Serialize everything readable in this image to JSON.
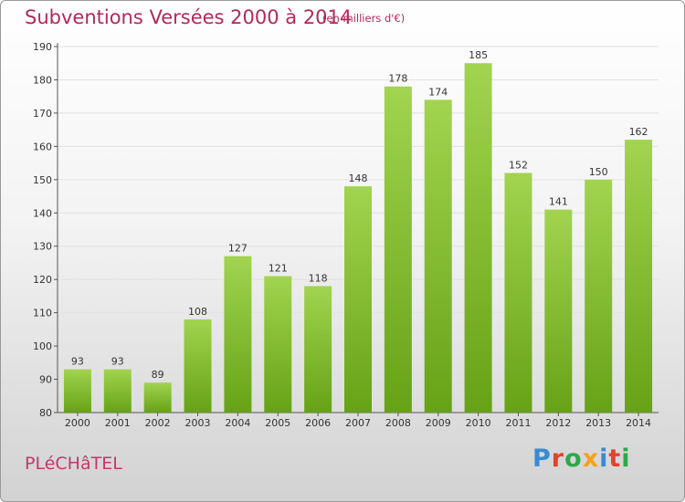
{
  "header": {
    "title": "Subventions Versées 2000 à 2014",
    "unit_note": "(en milliers d'€)"
  },
  "footer": {
    "commune": "PLéCHâTEL",
    "logo_letters": [
      "P",
      "r",
      "o",
      "x",
      "i",
      "t",
      "i"
    ],
    "logo_colors": [
      "#3a8ad1",
      "#e0442d",
      "#2ea84a",
      "#f4a21d",
      "#3a8ad1",
      "#e0442d",
      "#2ea84a"
    ]
  },
  "chart_data": {
    "type": "bar",
    "title": "Subventions Versées 2000 à 2014",
    "xlabel": "",
    "ylabel": "",
    "categories": [
      "2000",
      "2001",
      "2002",
      "2003",
      "2004",
      "2005",
      "2006",
      "2007",
      "2008",
      "2009",
      "2010",
      "2011",
      "2012",
      "2013",
      "2014"
    ],
    "values": [
      93,
      93,
      89,
      108,
      127,
      121,
      118,
      148,
      178,
      174,
      185,
      152,
      141,
      150,
      162
    ],
    "ylim": [
      80,
      190
    ],
    "yticks": [
      80,
      90,
      100,
      110,
      120,
      130,
      140,
      150,
      160,
      170,
      180,
      190
    ],
    "grid": true,
    "bar_color_light": "#a2d44f",
    "bar_color_dark": "#66a216"
  }
}
